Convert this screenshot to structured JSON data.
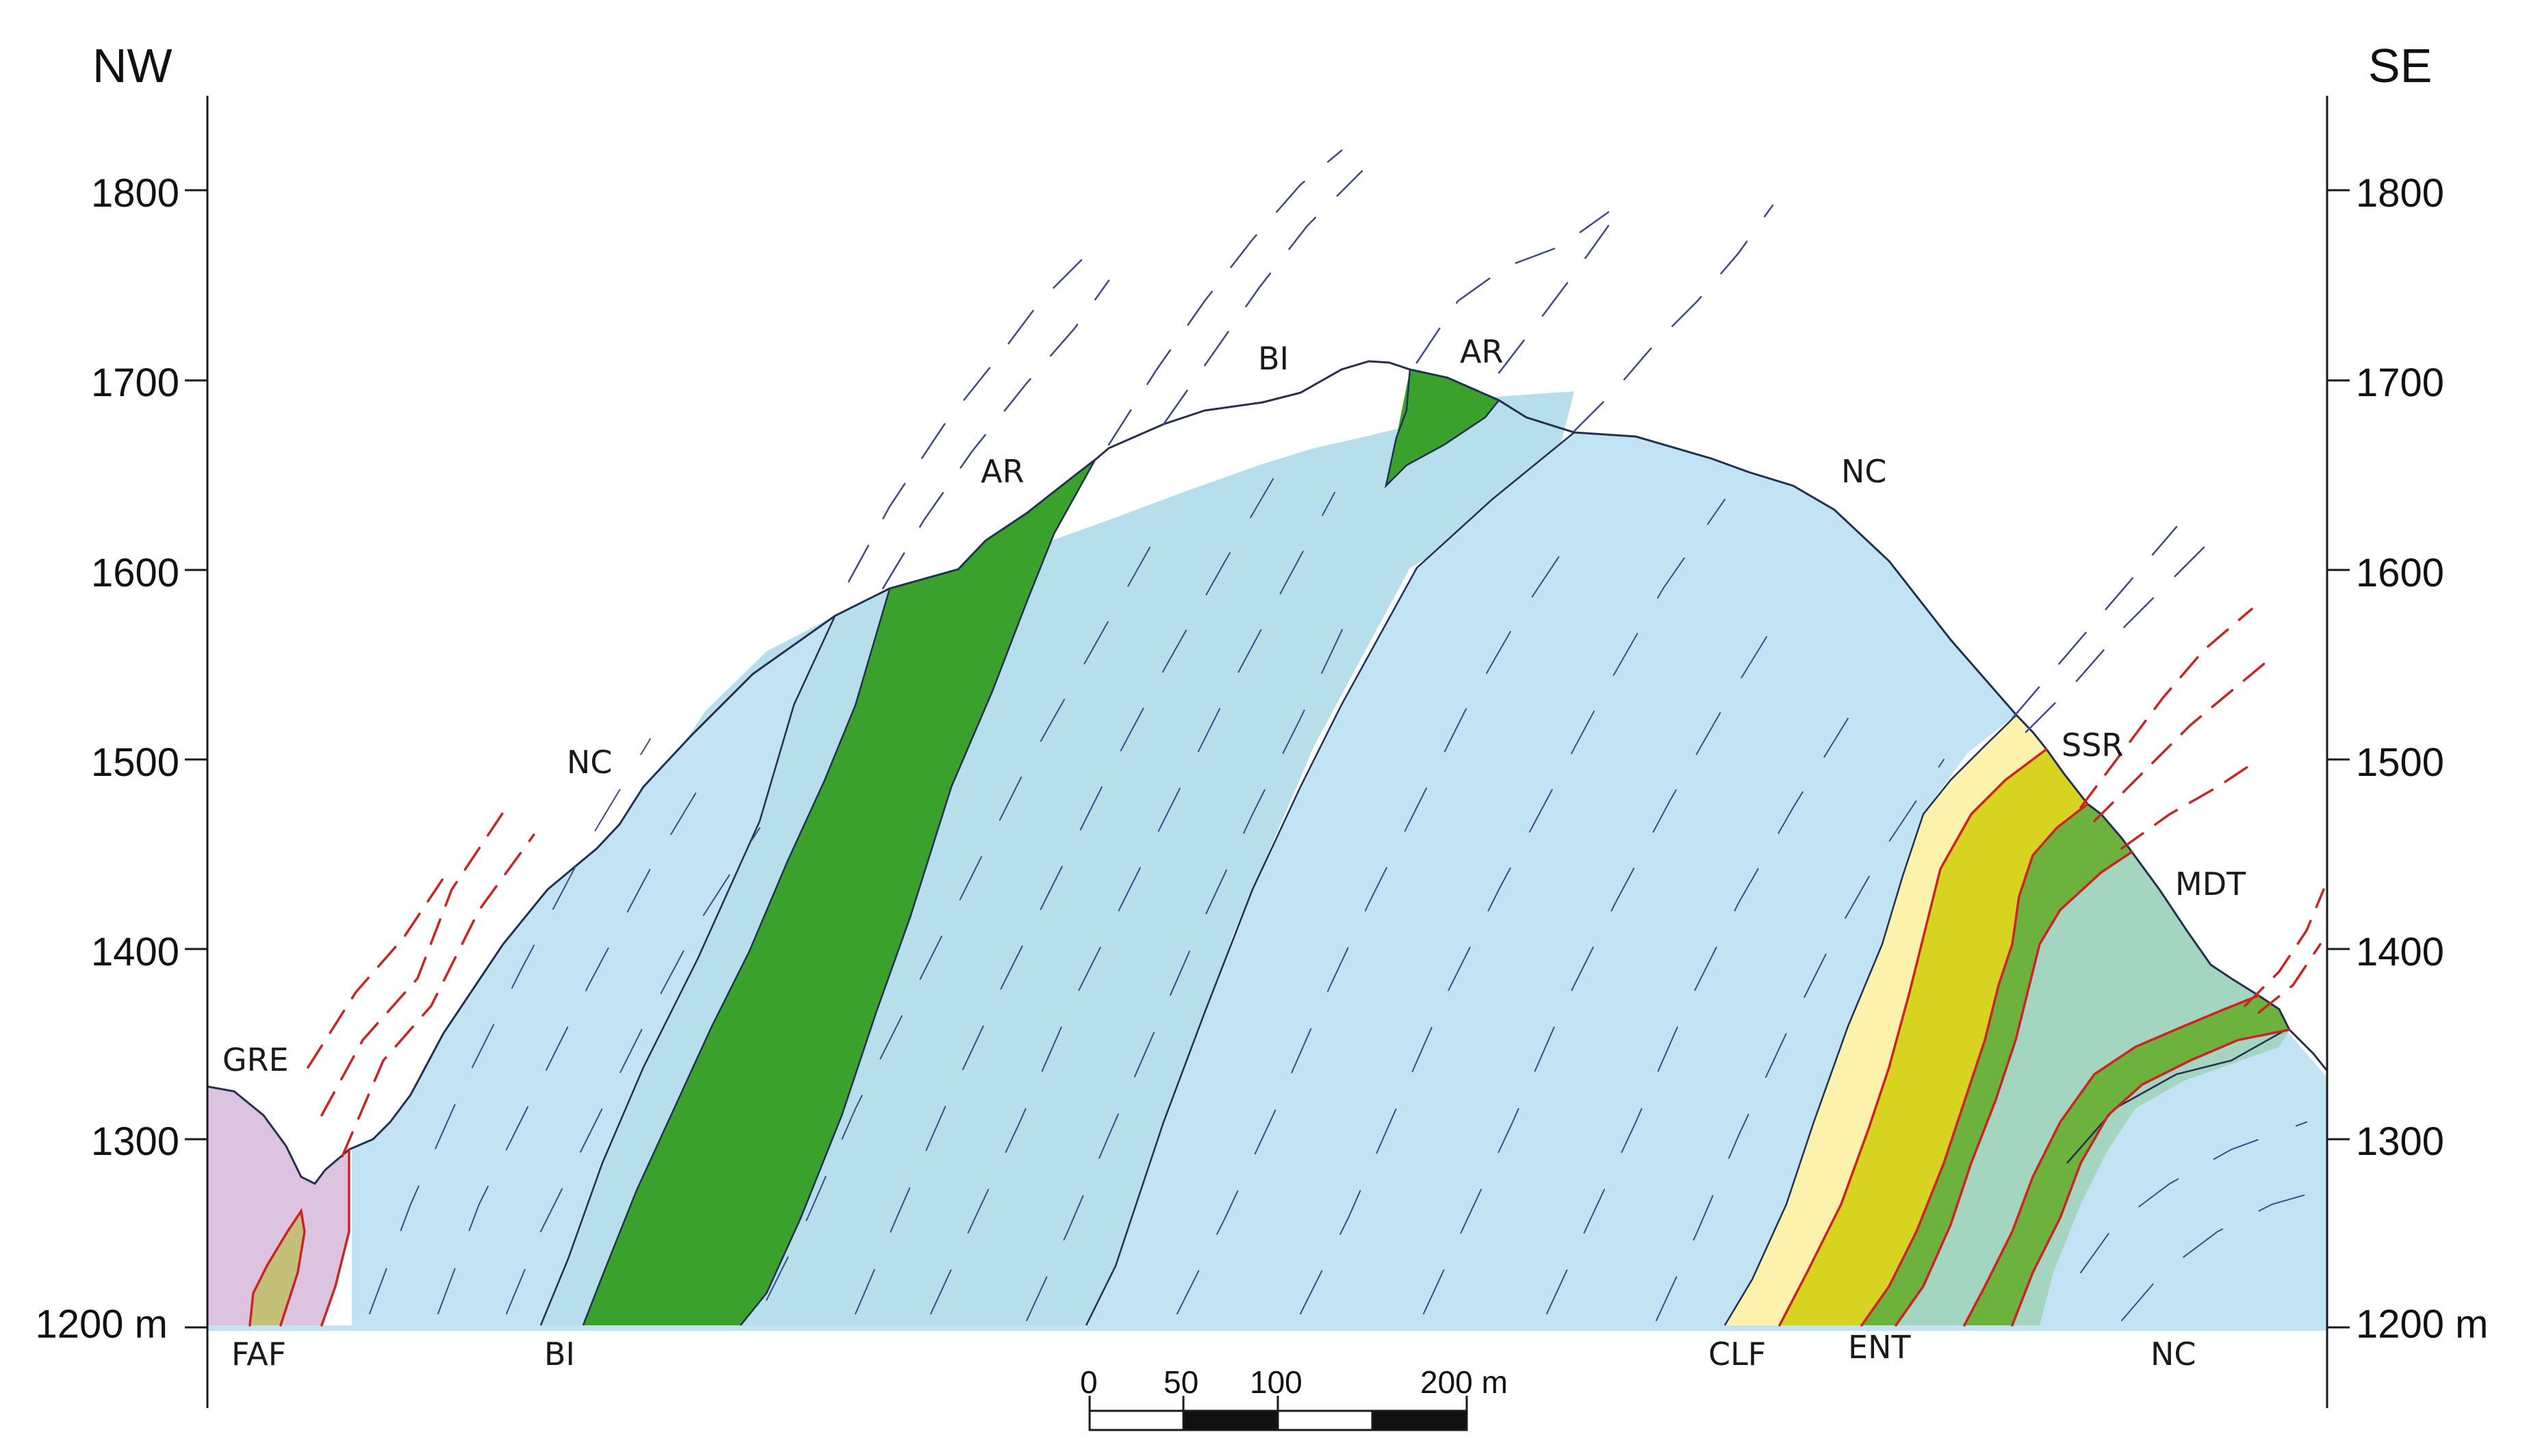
{
  "orientation": {
    "left": "NW",
    "right": "SE"
  },
  "elevation_ticks": {
    "left": [
      "1800",
      "1700",
      "1600",
      "1500",
      "1400",
      "1300",
      "1200 m"
    ],
    "right": [
      "1800",
      "1700",
      "1600",
      "1500",
      "1400",
      "1300",
      "1200 m"
    ]
  },
  "unit_labels": {
    "faf": "FAF",
    "bi_base": "BI",
    "clf": "CLF",
    "ent": "ENT",
    "nc_base": "NC",
    "gre": "GRE",
    "nc_left": "NC",
    "ar_left": "AR",
    "bi_top": "BI",
    "ar_top": "AR",
    "nc_top": "NC",
    "ssr": "SSR",
    "mdt": "MDT"
  },
  "scale_bar": {
    "ticks": [
      "0",
      "50",
      "100",
      "200 m"
    ]
  },
  "colors": {
    "nc": "#c1e3f4",
    "bi": "#b6dfeb",
    "ar": "#3aa22c",
    "gre": "#dcc3df",
    "faf": "#c4c07a",
    "clf": "#fdf2ac",
    "ssr": "#d8d321",
    "ent": "#6cb23c",
    "mdt": "#a4d5c1",
    "outline": "#23304f",
    "thrust": "#cc2424",
    "foliation": "#3d4c86"
  }
}
